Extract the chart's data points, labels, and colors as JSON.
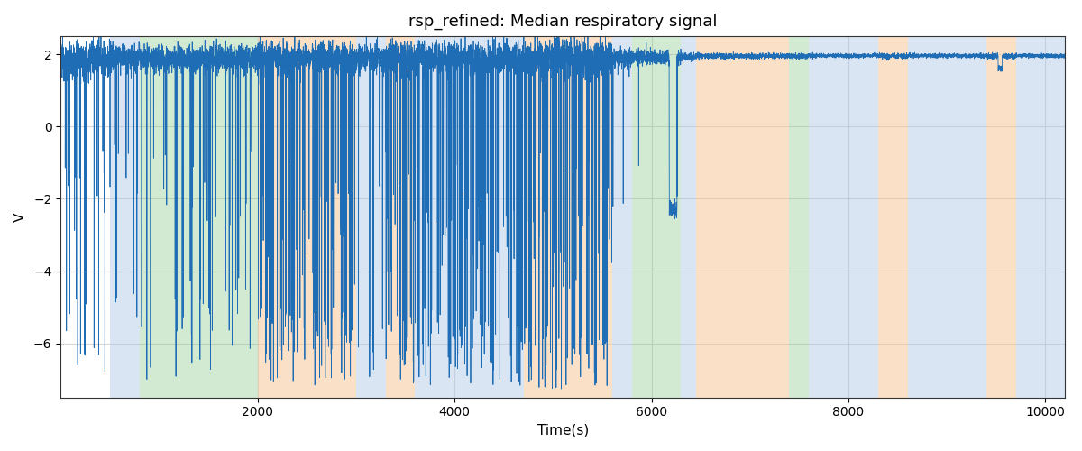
{
  "title": "rsp_refined: Median respiratory signal",
  "xlabel": "Time(s)",
  "ylabel": "V",
  "xlim": [
    0,
    10200
  ],
  "ylim": [
    -7.5,
    2.5
  ],
  "yticks": [
    2,
    0,
    -2,
    -4,
    -6
  ],
  "xticks": [
    2000,
    4000,
    6000,
    8000,
    10000
  ],
  "line_color": "#1f6eb5",
  "line_width": 0.6,
  "bg_color": "#ffffff",
  "grid_color": "#cccccc",
  "title_fontsize": 13,
  "label_fontsize": 11,
  "colored_regions": [
    {
      "xmin": 500,
      "xmax": 800,
      "color": "#aec6e8",
      "alpha": 0.45
    },
    {
      "xmin": 800,
      "xmax": 2000,
      "color": "#90c990",
      "alpha": 0.4
    },
    {
      "xmin": 2000,
      "xmax": 3000,
      "color": "#f5c89a",
      "alpha": 0.55
    },
    {
      "xmin": 3000,
      "xmax": 3300,
      "color": "#aec6e8",
      "alpha": 0.45
    },
    {
      "xmin": 3300,
      "xmax": 3600,
      "color": "#f5c89a",
      "alpha": 0.55
    },
    {
      "xmin": 3600,
      "xmax": 4700,
      "color": "#aec6e8",
      "alpha": 0.45
    },
    {
      "xmin": 4700,
      "xmax": 5600,
      "color": "#f5c89a",
      "alpha": 0.55
    },
    {
      "xmin": 5600,
      "xmax": 5800,
      "color": "#aec6e8",
      "alpha": 0.45
    },
    {
      "xmin": 5800,
      "xmax": 6300,
      "color": "#90c990",
      "alpha": 0.4
    },
    {
      "xmin": 6300,
      "xmax": 6450,
      "color": "#aec6e8",
      "alpha": 0.45
    },
    {
      "xmin": 6450,
      "xmax": 7400,
      "color": "#f5c89a",
      "alpha": 0.55
    },
    {
      "xmin": 7400,
      "xmax": 7600,
      "color": "#90c990",
      "alpha": 0.4
    },
    {
      "xmin": 7600,
      "xmax": 8300,
      "color": "#aec6e8",
      "alpha": 0.45
    },
    {
      "xmin": 8300,
      "xmax": 8600,
      "color": "#f5c89a",
      "alpha": 0.55
    },
    {
      "xmin": 8600,
      "xmax": 9400,
      "color": "#aec6e8",
      "alpha": 0.45
    },
    {
      "xmin": 9400,
      "xmax": 9700,
      "color": "#f5c89a",
      "alpha": 0.55
    },
    {
      "xmin": 9700,
      "xmax": 10200,
      "color": "#aec6e8",
      "alpha": 0.45
    }
  ]
}
